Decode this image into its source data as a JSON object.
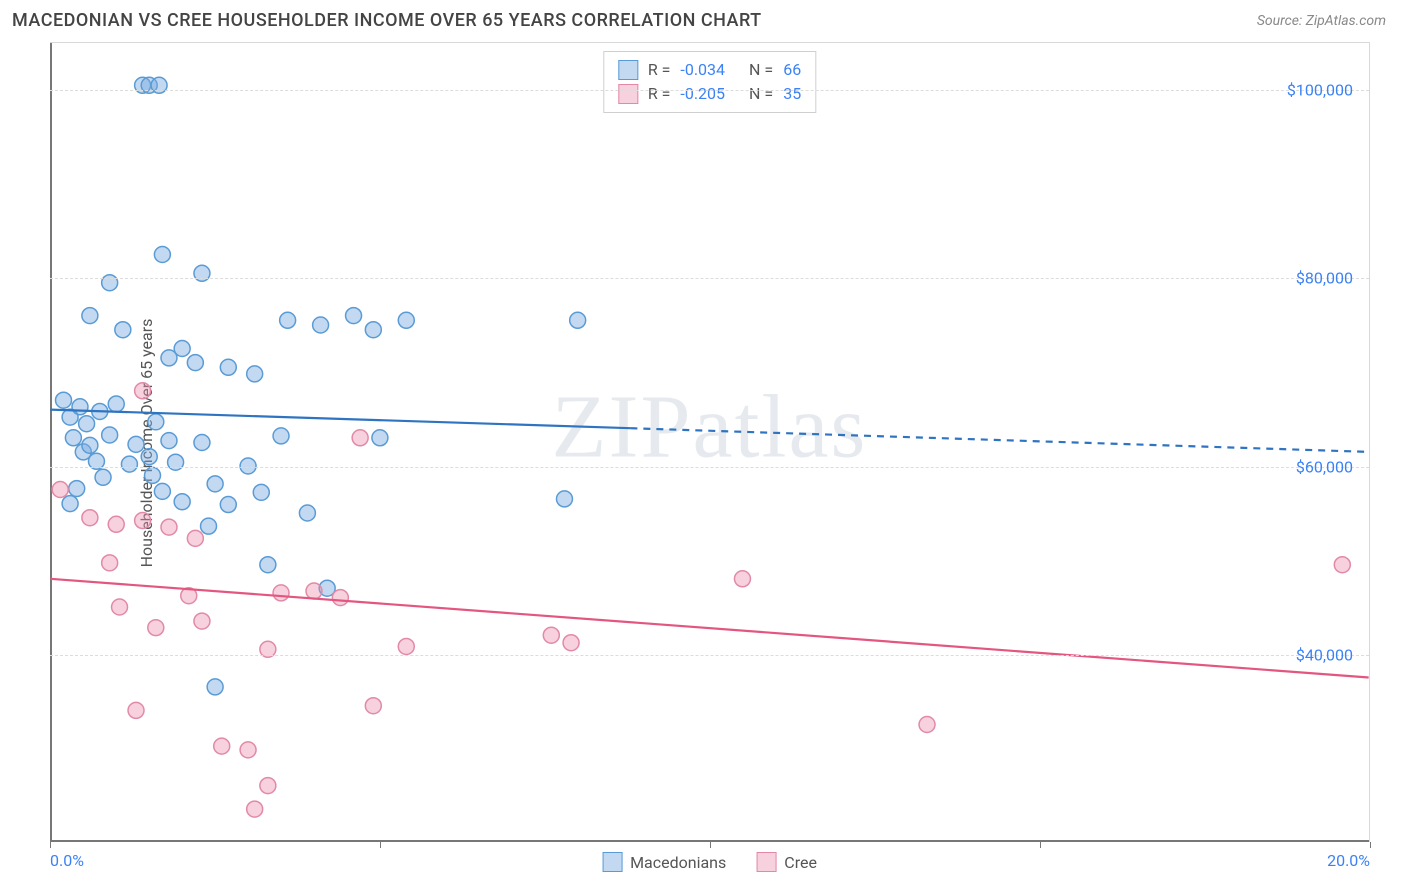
{
  "header": {
    "title": "MACEDONIAN VS CREE HOUSEHOLDER INCOME OVER 65 YEARS CORRELATION CHART",
    "source": "Source: ZipAtlas.com"
  },
  "watermark": "ZIPatlas",
  "chart": {
    "type": "scatter",
    "background_color": "#ffffff",
    "grid_color": "#dcdcdc",
    "axis_color": "#777777",
    "xlim": [
      0,
      20
    ],
    "ylim": [
      20000,
      105000
    ],
    "x_ticks": [
      0,
      5,
      10,
      15,
      20
    ],
    "x_tick_labels": [
      "0.0%",
      "",
      "",
      "",
      "20.0%"
    ],
    "y_ticks": [
      40000,
      60000,
      80000,
      100000
    ],
    "y_tick_labels": [
      "$40,000",
      "$60,000",
      "$80,000",
      "$100,000"
    ],
    "y_axis_title": "Householder Income Over 65 years",
    "marker_radius": 8,
    "marker_stroke_width": 1.5,
    "line_width": 2.2,
    "series": [
      {
        "name": "Macedonians",
        "color_fill": "rgba(120,170,225,0.45)",
        "color_stroke": "#5a9bd5",
        "line_color": "#2f74c0",
        "R": "-0.034",
        "N": "66",
        "regression": {
          "x1": 0,
          "y1": 66000,
          "x2": 20,
          "y2": 61500,
          "solid_until_x": 8.8
        },
        "points": [
          [
            1.4,
            100500
          ],
          [
            1.5,
            100500
          ],
          [
            1.65,
            100500
          ],
          [
            1.7,
            82500
          ],
          [
            0.9,
            79500
          ],
          [
            2.3,
            80500
          ],
          [
            0.6,
            76000
          ],
          [
            1.1,
            74500
          ],
          [
            2.0,
            72500
          ],
          [
            3.6,
            75500
          ],
          [
            4.1,
            75000
          ],
          [
            4.6,
            76000
          ],
          [
            4.9,
            74500
          ],
          [
            5.4,
            75500
          ],
          [
            8.0,
            75500
          ],
          [
            1.8,
            71500
          ],
          [
            2.2,
            71000
          ],
          [
            2.7,
            70500
          ],
          [
            3.1,
            69800
          ],
          [
            0.2,
            67000
          ],
          [
            0.3,
            65200
          ],
          [
            0.35,
            63000
          ],
          [
            0.45,
            66300
          ],
          [
            0.5,
            61500
          ],
          [
            0.55,
            64500
          ],
          [
            0.6,
            62200
          ],
          [
            0.7,
            60500
          ],
          [
            0.75,
            65800
          ],
          [
            0.8,
            58800
          ],
          [
            0.9,
            63300
          ],
          [
            1.0,
            66600
          ],
          [
            1.2,
            60200
          ],
          [
            1.3,
            62300
          ],
          [
            1.5,
            61000
          ],
          [
            1.55,
            59000
          ],
          [
            1.6,
            64700
          ],
          [
            1.7,
            57300
          ],
          [
            1.8,
            62700
          ],
          [
            1.9,
            60400
          ],
          [
            2.0,
            56200
          ],
          [
            2.3,
            62500
          ],
          [
            2.5,
            58100
          ],
          [
            2.7,
            55900
          ],
          [
            3.0,
            60000
          ],
          [
            3.2,
            57200
          ],
          [
            3.5,
            63200
          ],
          [
            3.9,
            55000
          ],
          [
            5.0,
            63000
          ],
          [
            0.3,
            56000
          ],
          [
            0.4,
            57600
          ],
          [
            2.4,
            53600
          ],
          [
            3.3,
            49500
          ],
          [
            4.2,
            47000
          ],
          [
            7.8,
            56500
          ],
          [
            2.5,
            36500
          ]
        ]
      },
      {
        "name": "Cree",
        "color_fill": "rgba(235,140,170,0.40)",
        "color_stroke": "#e28aa5",
        "line_color": "#e3567f",
        "R": "-0.205",
        "N": "35",
        "regression": {
          "x1": 0,
          "y1": 48000,
          "x2": 20,
          "y2": 37500,
          "solid_until_x": 20
        },
        "points": [
          [
            1.4,
            68000
          ],
          [
            4.7,
            63000
          ],
          [
            0.15,
            57500
          ],
          [
            0.6,
            54500
          ],
          [
            1.0,
            53800
          ],
          [
            1.4,
            54200
          ],
          [
            1.8,
            53500
          ],
          [
            2.2,
            52300
          ],
          [
            0.9,
            49700
          ],
          [
            1.05,
            45000
          ],
          [
            2.1,
            46200
          ],
          [
            3.5,
            46500
          ],
          [
            4.0,
            46700
          ],
          [
            4.4,
            46000
          ],
          [
            10.5,
            48000
          ],
          [
            19.6,
            49500
          ],
          [
            1.6,
            42800
          ],
          [
            2.3,
            43500
          ],
          [
            3.3,
            40500
          ],
          [
            5.4,
            40800
          ],
          [
            7.6,
            42000
          ],
          [
            7.9,
            41200
          ],
          [
            1.3,
            34000
          ],
          [
            2.6,
            30200
          ],
          [
            3.0,
            29800
          ],
          [
            3.3,
            26000
          ],
          [
            4.9,
            34500
          ],
          [
            13.3,
            32500
          ],
          [
            3.1,
            23500
          ]
        ]
      }
    ]
  },
  "stats_legend": {
    "rows": [
      {
        "swatch_fill": "rgba(120,170,225,0.45)",
        "swatch_stroke": "#5a9bd5",
        "R_label": "R =",
        "R_val": "-0.034",
        "N_label": "N =",
        "N_val": "66"
      },
      {
        "swatch_fill": "rgba(235,140,170,0.40)",
        "swatch_stroke": "#e28aa5",
        "R_label": "R =",
        "R_val": "-0.205",
        "N_label": "N =",
        "N_val": "35"
      }
    ]
  },
  "series_legend": {
    "items": [
      {
        "swatch_fill": "rgba(120,170,225,0.45)",
        "swatch_stroke": "#5a9bd5",
        "label": "Macedonians"
      },
      {
        "swatch_fill": "rgba(235,140,170,0.40)",
        "swatch_stroke": "#e28aa5",
        "label": "Cree"
      }
    ]
  }
}
